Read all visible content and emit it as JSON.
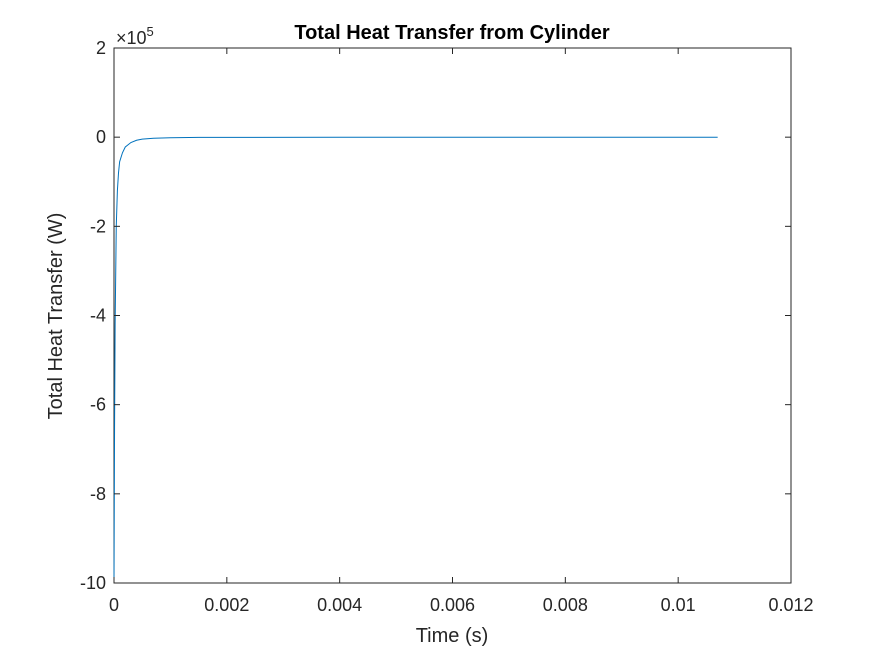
{
  "chart_data": {
    "type": "line",
    "title": "Total Heat Transfer from Cylinder",
    "xlabel": "Time (s)",
    "ylabel": "Total Heat Transfer (W)",
    "xlim": [
      0,
      0.012
    ],
    "ylim": [
      -10,
      2
    ],
    "y_exponent_base": "×10",
    "y_exponent_power": "5",
    "xticks": [
      0,
      0.002,
      0.004,
      0.006,
      0.008,
      0.01,
      0.012
    ],
    "xtick_labels": [
      "0",
      "0.002",
      "0.004",
      "0.006",
      "0.008",
      "0.01",
      "0.012"
    ],
    "yticks": [
      2,
      0,
      -2,
      -4,
      -6,
      -8,
      -10
    ],
    "ytick_labels": [
      "2",
      "0",
      "-2",
      "-4",
      "-6",
      "-8",
      "-10"
    ],
    "grid": false,
    "series": [
      {
        "color": "#0072BD",
        "x": [
          0,
          1e-05,
          2e-05,
          4e-05,
          6e-05,
          8e-05,
          0.0001,
          0.00015,
          0.0002,
          0.0003,
          0.0004,
          0.0005,
          0.0007,
          0.001,
          0.0015,
          0.002,
          0.004,
          0.006,
          0.008,
          0.0107
        ],
        "y": [
          -10,
          -6.5,
          -4.2,
          -2.0,
          -1.2,
          -0.8,
          -0.55,
          -0.35,
          -0.22,
          -0.12,
          -0.07,
          -0.045,
          -0.025,
          -0.012,
          -0.006,
          -0.004,
          -0.002,
          -0.0015,
          -0.001,
          -0.001
        ]
      }
    ]
  }
}
